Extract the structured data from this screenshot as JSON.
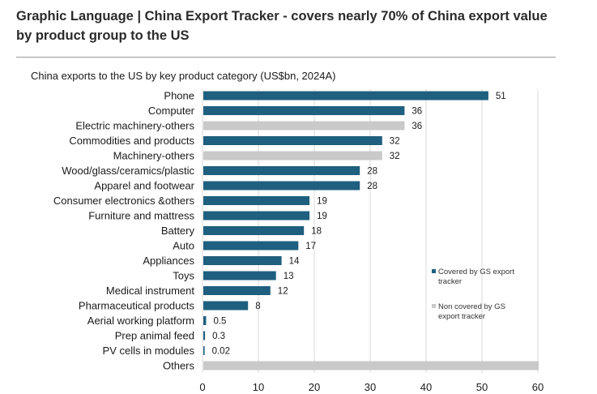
{
  "headline": {
    "line1": "Graphic Language | China Export Tracker - covers nearly 70% of China export value",
    "line2": "by product group to the US"
  },
  "colors": {
    "covered": "#1f5f7f",
    "non_covered": "#c9c9c9",
    "grid": "#d9d9d9"
  },
  "chart_data": {
    "type": "bar",
    "orientation": "horizontal",
    "title": "China exports to the US by key product category (US$bn, 2024A)",
    "xlim": [
      0,
      60
    ],
    "xticks": [
      "0",
      "10",
      "20",
      "30",
      "40",
      "50",
      "60"
    ],
    "grid": true,
    "legend_position": "right",
    "legend": [
      {
        "key": "covered",
        "line1": "Covered by GS export",
        "line2": "tracker"
      },
      {
        "key": "non_covered",
        "line1": "Non covered by GS",
        "line2": "export tracker"
      }
    ],
    "bars": [
      {
        "category": "Phone",
        "value": 51,
        "label": "51",
        "group": "covered"
      },
      {
        "category": "Computer",
        "value": 36,
        "label": "36",
        "group": "covered"
      },
      {
        "category": "Electric machinery-others",
        "value": 36,
        "label": "36",
        "group": "non_covered"
      },
      {
        "category": "Commodities and products",
        "value": 32,
        "label": "32",
        "group": "covered"
      },
      {
        "category": "Machinery-others",
        "value": 32,
        "label": "32",
        "group": "non_covered"
      },
      {
        "category": "Wood/glass/ceramics/plastic",
        "value": 28,
        "label": "28",
        "group": "covered"
      },
      {
        "category": "Apparel and footwear",
        "value": 28,
        "label": "28",
        "group": "covered"
      },
      {
        "category": "Consumer electronics &others",
        "value": 19,
        "label": "19",
        "group": "covered"
      },
      {
        "category": "Furniture and mattress",
        "value": 19,
        "label": "19",
        "group": "covered"
      },
      {
        "category": "Battery",
        "value": 18,
        "label": "18",
        "group": "covered"
      },
      {
        "category": "Auto",
        "value": 17,
        "label": "17",
        "group": "covered"
      },
      {
        "category": "Appliances",
        "value": 14,
        "label": "14",
        "group": "covered"
      },
      {
        "category": "Toys",
        "value": 13,
        "label": "13",
        "group": "covered"
      },
      {
        "category": "Medical instrument",
        "value": 12,
        "label": "12",
        "group": "covered"
      },
      {
        "category": "Pharmaceutical products",
        "value": 8,
        "label": "8",
        "group": "covered"
      },
      {
        "category": "Aerial working platform",
        "value": 0.5,
        "label": "0.5",
        "group": "covered"
      },
      {
        "category": "Prep animal feed",
        "value": 0.3,
        "label": "0.3",
        "group": "covered"
      },
      {
        "category": "PV cells in modules",
        "value": 0.02,
        "label": "0.02",
        "group": "covered"
      },
      {
        "category": "Others",
        "value": 60,
        "label": "",
        "group": "non_covered"
      }
    ]
  }
}
